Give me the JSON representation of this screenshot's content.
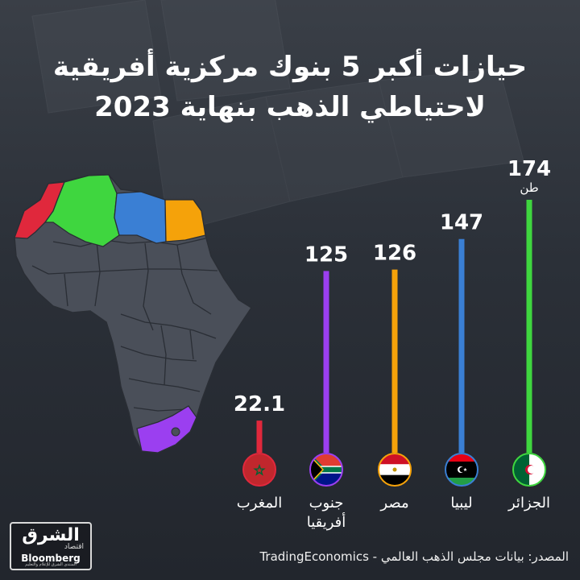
{
  "title_lines": [
    "حيازات أكبر 5 بنوك مركزية أفريقية",
    "لاحتياطي الذهب بنهاية 2023"
  ],
  "source": "المصدر: بيانات مجلس الذهب العالمي - TradingEconomics",
  "logo": {
    "name": "الشرق",
    "sub": "اقتصاد",
    "brand": "Bloomberg",
    "tagline": "المنتدى الشرق للإعلام والتعليم"
  },
  "colors": {
    "background": "#262b33",
    "morocco": "#e0283c",
    "algeria": "#3fd63f",
    "libya": "#3a7fd4",
    "egypt": "#f5a20a",
    "south_africa": "#9b3ff0"
  },
  "chart_data": {
    "type": "bar",
    "orientation": "vertical",
    "unit": "طن",
    "categories": [
      "المغرب",
      "جنوب أفريقيا",
      "مصر",
      "ليبيا",
      "الجزائر"
    ],
    "label_lines": [
      [
        "المغرب"
      ],
      [
        "جنوب",
        "أفريقيا"
      ],
      [
        "مصر"
      ],
      [
        "ليبيا"
      ],
      [
        "الجزائر"
      ]
    ],
    "values": [
      22.1,
      125,
      126,
      147,
      174
    ],
    "value_labels": [
      "22.1",
      "125",
      "126",
      "147",
      "174"
    ],
    "bar_colors": [
      "#e0283c",
      "#9b3ff0",
      "#f5a20a",
      "#3a7fd4",
      "#3fd63f"
    ],
    "flag_icons": [
      "morocco-flag-icon",
      "south-africa-flag-icon",
      "egypt-flag-icon",
      "libya-flag-icon",
      "algeria-flag-icon"
    ],
    "ylim": [
      0,
      174
    ],
    "grid": false,
    "legend": "none"
  }
}
